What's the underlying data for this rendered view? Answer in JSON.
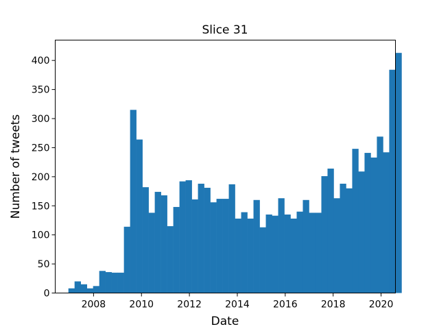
{
  "chart_data": {
    "type": "bar",
    "title": "Slice 31",
    "xlabel": "Date",
    "ylabel": "Number of tweets",
    "bar_color": "#1f77b4",
    "xlim": [
      2006.4,
      2020.6
    ],
    "ylim": [
      0,
      435
    ],
    "xticks": [
      2008,
      2010,
      2012,
      2014,
      2016,
      2018,
      2020
    ],
    "yticks": [
      0,
      50,
      100,
      150,
      200,
      250,
      300,
      350,
      400
    ],
    "bins": {
      "start": 2006.95,
      "width": 0.2575,
      "values": [
        8,
        20,
        15,
        8,
        12,
        38,
        36,
        35,
        35,
        114,
        315,
        264,
        182,
        138,
        174,
        168,
        115,
        148,
        192,
        194,
        161,
        188,
        181,
        156,
        162,
        162,
        187,
        128,
        139,
        128,
        160,
        113,
        135,
        133,
        163,
        135,
        128,
        140,
        160,
        138,
        138,
        201,
        214,
        163,
        188,
        180,
        248,
        209,
        241,
        233,
        269,
        242,
        384,
        413
      ]
    }
  }
}
